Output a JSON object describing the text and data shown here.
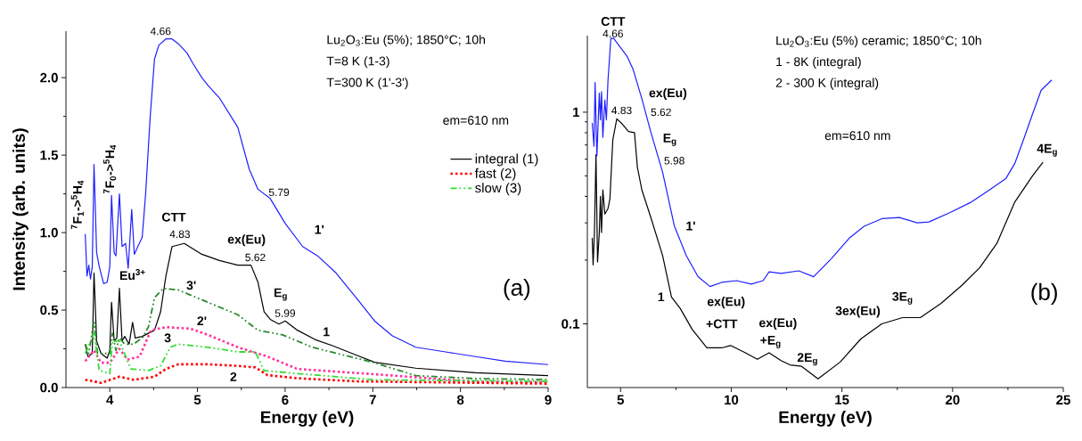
{
  "chart_data": [
    {
      "type": "line",
      "xlabel": "Energy (eV)",
      "ylabel": "Intensity (arb. units)",
      "xlim": [
        3.5,
        9
      ],
      "ylim": [
        0,
        2.3
      ],
      "xticks": [
        4,
        5,
        6,
        7,
        8,
        9
      ],
      "yticks": [
        {
          "value": 0,
          "label": "0.0"
        },
        0.5,
        {
          "value": 1,
          "label": "1.0"
        },
        1.5,
        {
          "value": 2,
          "label": "2.0"
        }
      ],
      "legend": "right",
      "series": [
        {
          "color": "#1f1fff",
          "line_style": "solid",
          "x": [
            3.72,
            3.74,
            3.76,
            3.78,
            3.8,
            3.82,
            3.85,
            3.88,
            3.93,
            3.97,
            4.0,
            4.02,
            4.05,
            4.07,
            4.11,
            4.14,
            4.18,
            4.21,
            4.25,
            4.28,
            4.32,
            4.37,
            4.41,
            4.46,
            4.51,
            4.56,
            4.64,
            4.71,
            4.78,
            4.88,
            4.95,
            5.05,
            5.12,
            5.25,
            5.46,
            5.59,
            5.69,
            5.83,
            6.0,
            6.2,
            6.37,
            6.58,
            6.81,
            7.02,
            7.22,
            7.49,
            7.83,
            8.17,
            8.51,
            9.0
          ],
          "values": [
            0.99,
            0.72,
            0.79,
            0.7,
            0.78,
            1.44,
            0.87,
            0.78,
            0.67,
            0.68,
            0.78,
            1.24,
            0.87,
            0.85,
            1.25,
            0.91,
            0.93,
            0.77,
            1.15,
            0.86,
            0.91,
            0.97,
            1.26,
            1.74,
            2.12,
            2.21,
            2.25,
            2.25,
            2.22,
            2.16,
            2.09,
            2.0,
            1.95,
            1.87,
            1.68,
            1.41,
            1.28,
            1.22,
            1.06,
            0.91,
            0.85,
            0.74,
            0.58,
            0.43,
            0.335,
            0.26,
            0.23,
            0.2,
            0.17,
            0.148
          ]
        },
        {
          "name": "integral (1)",
          "color": "#000000",
          "line_style": "solid",
          "x": [
            3.72,
            3.75,
            3.8,
            3.82,
            3.85,
            3.9,
            3.97,
            4.0,
            4.02,
            4.05,
            4.08,
            4.11,
            4.14,
            4.17,
            4.22,
            4.26,
            4.29,
            4.37,
            4.44,
            4.51,
            4.58,
            4.64,
            4.71,
            4.85,
            5.05,
            5.25,
            5.46,
            5.61,
            5.69,
            5.76,
            5.83,
            5.93,
            6.0,
            6.14,
            6.34,
            6.54,
            6.81,
            7.02,
            7.49,
            8.17,
            9.0
          ],
          "values": [
            0.28,
            0.2,
            0.22,
            0.74,
            0.3,
            0.22,
            0.19,
            0.24,
            0.55,
            0.3,
            0.32,
            0.64,
            0.3,
            0.33,
            0.28,
            0.42,
            0.32,
            0.33,
            0.35,
            0.37,
            0.49,
            0.72,
            0.91,
            0.93,
            0.86,
            0.82,
            0.79,
            0.79,
            0.68,
            0.49,
            0.44,
            0.41,
            0.43,
            0.37,
            0.31,
            0.27,
            0.21,
            0.163,
            0.125,
            0.096,
            0.077
          ]
        },
        {
          "color": "#2a8a2a",
          "line_style": "dashdot",
          "x": [
            3.72,
            3.76,
            3.82,
            3.86,
            4.0,
            4.03,
            4.07,
            4.11,
            4.17,
            4.27,
            4.37,
            4.44,
            4.51,
            4.61,
            4.78,
            5.12,
            5.46,
            5.69,
            5.97,
            6.31,
            7.02,
            7.49,
            8.17,
            9.0
          ],
          "values": [
            0.28,
            0.22,
            0.43,
            0.22,
            0.22,
            0.35,
            0.24,
            0.32,
            0.28,
            0.28,
            0.32,
            0.39,
            0.58,
            0.64,
            0.63,
            0.55,
            0.47,
            0.37,
            0.34,
            0.26,
            0.16,
            0.077,
            0.058,
            0.052
          ]
        },
        {
          "color": "#ff3399",
          "line_style": "dotted",
          "x": [
            3.72,
            3.82,
            3.9,
            4.0,
            4.11,
            4.2,
            4.34,
            4.47,
            4.64,
            4.92,
            5.12,
            5.46,
            5.8,
            6.14,
            7.02,
            8.17,
            9.0
          ],
          "values": [
            0.17,
            0.24,
            0.16,
            0.16,
            0.25,
            0.18,
            0.2,
            0.37,
            0.39,
            0.38,
            0.34,
            0.26,
            0.2,
            0.12,
            0.086,
            0.038,
            0.035
          ]
        },
        {
          "name": "fast (2)",
          "color": "#ff0000",
          "line_style": "dotted",
          "x": [
            3.72,
            3.9,
            4.11,
            4.27,
            4.51,
            4.64,
            4.78,
            5.12,
            5.46,
            5.66,
            5.8,
            6.14,
            6.81,
            9.0
          ],
          "values": [
            0.05,
            0.03,
            0.07,
            0.05,
            0.07,
            0.12,
            0.15,
            0.15,
            0.14,
            0.13,
            0.08,
            0.06,
            0.04,
            0.025
          ]
        },
        {
          "name": "slow (3)",
          "color": "#33dd33",
          "line_style": "dashdot",
          "x": [
            3.72,
            3.82,
            3.88,
            4.0,
            4.03,
            4.11,
            4.24,
            4.44,
            4.58,
            4.69,
            4.78,
            5.12,
            5.46,
            5.66,
            5.76,
            6.14,
            7.02,
            9.0
          ],
          "values": [
            0.22,
            0.35,
            0.11,
            0.09,
            0.3,
            0.3,
            0.12,
            0.11,
            0.14,
            0.26,
            0.28,
            0.26,
            0.23,
            0.23,
            0.11,
            0.09,
            0.05,
            0.04
          ]
        }
      ],
      "annotations": [
        "Lu$_{2}$O$_{3}$:Eu (5%); 1850°C; 10h",
        "T=8 K (1-3)",
        "T=300 K (1'-3')",
        "em=610 nm",
        "(a)",
        "4.66",
        "5.79",
        "1'",
        "CTT",
        "4.83",
        "ex(Eu)",
        "5.62",
        "E$_{g}$",
        "5.99",
        "1",
        "3'",
        "2'",
        "3",
        "2",
        "Eu$^{3+}$",
        "$^{7}$F$_{1}$->$^{5}$H$_{4}$",
        "$^{7}$F$_{0}$->$^{5}$H$_{4}$"
      ]
    },
    {
      "type": "line",
      "xlabel": "Energy (eV)",
      "log": "y",
      "xlim": [
        3.5,
        25
      ],
      "ylim": [
        0.05,
        2.3
      ],
      "xticks": [
        5,
        10,
        15,
        20,
        25
      ],
      "yticks": [
        0.1,
        1
      ],
      "series": [
        {
          "color": "#000000",
          "line_style": "solid",
          "x": [
            3.72,
            3.76,
            3.82,
            3.89,
            3.96,
            4.04,
            4.09,
            4.14,
            4.2,
            4.29,
            4.43,
            4.52,
            4.65,
            4.83,
            5.03,
            5.36,
            5.63,
            5.76,
            5.96,
            6.36,
            6.9,
            7.3,
            7.7,
            8.24,
            8.9,
            9.57,
            9.97,
            10.64,
            11.18,
            11.71,
            12.25,
            12.65,
            13.18,
            13.92,
            14.92,
            15.86,
            16.8,
            17.74,
            18.54,
            19.48,
            20.42,
            21.22,
            22.0,
            22.8,
            23.61,
            24.08
          ],
          "values": [
            0.255,
            0.19,
            0.27,
            0.63,
            0.196,
            0.27,
            0.4,
            0.27,
            0.43,
            0.33,
            0.35,
            0.39,
            0.74,
            0.93,
            0.89,
            0.81,
            0.8,
            0.55,
            0.43,
            0.32,
            0.21,
            0.134,
            0.118,
            0.094,
            0.077,
            0.077,
            0.079,
            0.073,
            0.068,
            0.073,
            0.067,
            0.064,
            0.063,
            0.055,
            0.066,
            0.085,
            0.1,
            0.107,
            0.107,
            0.125,
            0.152,
            0.184,
            0.24,
            0.375,
            0.5,
            0.58
          ]
        },
        {
          "color": "#1f1fff",
          "line_style": "solid",
          "x": [
            3.72,
            3.8,
            3.85,
            3.93,
            4.04,
            4.09,
            4.14,
            4.2,
            4.29,
            4.36,
            4.43,
            4.56,
            4.69,
            5.03,
            5.29,
            5.56,
            5.96,
            6.36,
            6.9,
            7.43,
            7.97,
            8.5,
            9.04,
            9.57,
            10.24,
            10.91,
            11.44,
            11.71,
            12.25,
            13.05,
            13.72,
            14.52,
            15.33,
            16.0,
            16.8,
            17.6,
            18.4,
            18.93,
            19.87,
            20.8,
            21.6,
            22.4,
            22.8,
            23.2,
            23.61,
            24.0,
            24.48
          ],
          "values": [
            0.89,
            0.69,
            1.38,
            0.62,
            1.23,
            0.92,
            1.25,
            0.76,
            1.14,
            0.92,
            1.4,
            2.23,
            2.23,
            2.0,
            1.84,
            1.6,
            1.16,
            0.81,
            0.52,
            0.29,
            0.21,
            0.167,
            0.15,
            0.157,
            0.16,
            0.154,
            0.16,
            0.176,
            0.173,
            0.178,
            0.167,
            0.203,
            0.254,
            0.289,
            0.314,
            0.318,
            0.3,
            0.303,
            0.335,
            0.374,
            0.425,
            0.485,
            0.57,
            0.74,
            0.98,
            1.27,
            1.42
          ]
        }
      ],
      "annotations": [
        "Lu$_{2}$O$_{3}$:Eu (5%) ceramic; 1850°C; 10h",
        "1 - 8K (integral)",
        "2 - 300 K (integral)",
        "em=610 nm",
        "(b)",
        "CTT",
        "4.66",
        "4.83",
        "ex(Eu)",
        "5.62",
        "E$_{g}$",
        "5.98",
        "1'",
        "1",
        "ex(Eu)",
        "+CTT",
        "ex(Eu)",
        "+E$_{g}$",
        "2E$_{g}$",
        "3ex(Eu)",
        "3E$_{g}$",
        "4E$_{g}$"
      ]
    }
  ]
}
